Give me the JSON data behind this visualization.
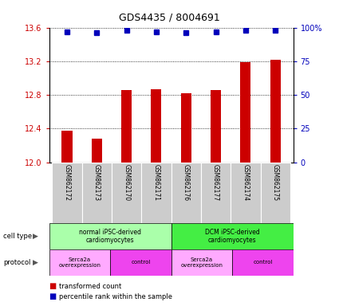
{
  "title": "GDS4435 / 8004691",
  "samples": [
    "GSM862172",
    "GSM862173",
    "GSM862170",
    "GSM862171",
    "GSM862176",
    "GSM862177",
    "GSM862174",
    "GSM862175"
  ],
  "bar_values": [
    12.37,
    12.28,
    12.86,
    12.87,
    12.82,
    12.86,
    13.19,
    13.22
  ],
  "percentile_values": [
    97,
    96,
    98,
    97,
    96,
    97,
    98,
    98
  ],
  "ylim_left": [
    12.0,
    13.6
  ],
  "ylim_right": [
    0,
    100
  ],
  "yticks_left": [
    12.0,
    12.4,
    12.8,
    13.2,
    13.6
  ],
  "yticks_right": [
    0,
    25,
    50,
    75,
    100
  ],
  "ytick_right_labels": [
    "0",
    "25",
    "50",
    "75",
    "100%"
  ],
  "bar_color": "#cc0000",
  "dot_color": "#0000bb",
  "cell_type_groups": [
    {
      "label": "normal iPSC-derived\ncardiomyocytes",
      "start": 0,
      "end": 4,
      "color": "#aaffaa"
    },
    {
      "label": "DCM iPSC-derived\ncardiomyocytes",
      "start": 4,
      "end": 8,
      "color": "#44ee44"
    }
  ],
  "protocol_groups": [
    {
      "label": "Serca2a\noverexpression",
      "start": 0,
      "end": 2,
      "color": "#ffaaff"
    },
    {
      "label": "control",
      "start": 2,
      "end": 4,
      "color": "#ee44ee"
    },
    {
      "label": "Serca2a\noverexpression",
      "start": 4,
      "end": 6,
      "color": "#ffaaff"
    },
    {
      "label": "control",
      "start": 6,
      "end": 8,
      "color": "#ee44ee"
    }
  ],
  "left_axis_color": "#cc0000",
  "right_axis_color": "#0000bb",
  "sample_bg_color": "#cccccc",
  "sample_border_color": "#ffffff"
}
